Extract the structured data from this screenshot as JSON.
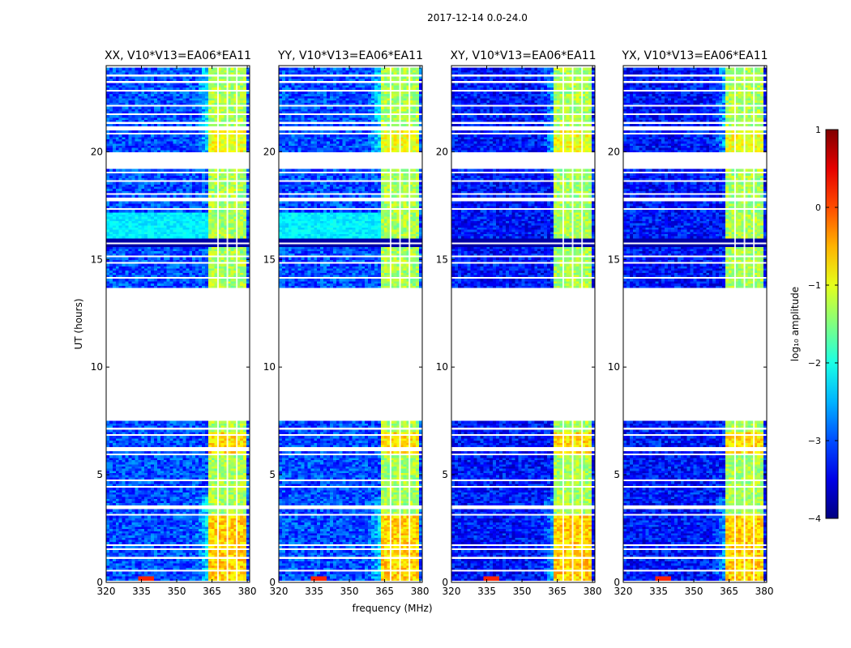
{
  "figure": {
    "suptitle": "2017-12-14 0.0-24.0",
    "shared_xlabel": "frequency (MHz)",
    "shared_ylabel": "UT (hours)"
  },
  "colorbar": {
    "label": "log₁₀ amplitude",
    "range": [
      -4,
      1
    ],
    "ticks": [
      1,
      0,
      -1,
      -2,
      -3,
      -4
    ],
    "tick_labels": [
      "1",
      "0",
      "−1",
      "−2",
      "−3",
      "−4"
    ],
    "colormap": "jet"
  },
  "chart_data": [
    {
      "type": "heatmap",
      "title": "XX, V10*V13=EA06*EA11",
      "xlabel": "frequency (MHz)",
      "ylabel": "UT (hours)",
      "xlim": [
        320,
        381
      ],
      "ylim": [
        0,
        24
      ],
      "xticks": [
        320,
        335,
        350,
        365,
        380
      ],
      "yticks": [
        0,
        5,
        10,
        15,
        20
      ],
      "data_gap_hours": [
        7.5,
        13.7
      ],
      "rfi_band_mhz": [
        363,
        379
      ],
      "cross_hand": false
    },
    {
      "type": "heatmap",
      "title": "YY, V10*V13=EA06*EA11",
      "xlabel": "frequency (MHz)",
      "ylabel": "",
      "xlim": [
        320,
        381
      ],
      "ylim": [
        0,
        24
      ],
      "xticks": [
        320,
        335,
        350,
        365,
        380
      ],
      "yticks": [
        0,
        5,
        10,
        15,
        20
      ],
      "data_gap_hours": [
        7.5,
        13.7
      ],
      "rfi_band_mhz": [
        363,
        379
      ],
      "cross_hand": false
    },
    {
      "type": "heatmap",
      "title": "XY, V10*V13=EA06*EA11",
      "xlabel": "frequency (MHz)",
      "ylabel": "",
      "xlim": [
        320,
        381
      ],
      "ylim": [
        0,
        24
      ],
      "xticks": [
        320,
        335,
        350,
        365,
        380
      ],
      "yticks": [
        0,
        5,
        10,
        15,
        20
      ],
      "data_gap_hours": [
        7.5,
        13.7
      ],
      "rfi_band_mhz": [
        363,
        379
      ],
      "cross_hand": true
    },
    {
      "type": "heatmap",
      "title": "YX, V10*V13=EA06*EA11",
      "xlabel": "frequency (MHz)",
      "ylabel": "",
      "xlim": [
        320,
        381
      ],
      "ylim": [
        0,
        24
      ],
      "xticks": [
        320,
        335,
        350,
        365,
        380
      ],
      "yticks": [
        0,
        5,
        10,
        15,
        20
      ],
      "data_gap_hours": [
        7.5,
        13.7
      ],
      "rfi_band_mhz": [
        363,
        379
      ],
      "cross_hand": true
    }
  ],
  "flagged_time_ranges_hours": [
    [
      0.0,
      0.1
    ],
    [
      0.5,
      0.6
    ],
    [
      1.1,
      1.25
    ],
    [
      1.55,
      1.65
    ],
    [
      1.75,
      1.85
    ],
    [
      3.1,
      3.2
    ],
    [
      3.4,
      3.65
    ],
    [
      4.45,
      4.55
    ],
    [
      4.7,
      4.8
    ],
    [
      5.95,
      6.05
    ],
    [
      6.15,
      6.3
    ],
    [
      6.85,
      6.95
    ],
    [
      7.15,
      7.25
    ],
    [
      7.5,
      13.7
    ],
    [
      14.1,
      14.2
    ],
    [
      14.8,
      14.9
    ],
    [
      15.15,
      15.25
    ],
    [
      15.75,
      15.85
    ],
    [
      17.3,
      17.45
    ],
    [
      17.7,
      17.9
    ],
    [
      18.0,
      18.1
    ],
    [
      18.6,
      18.75
    ],
    [
      19.05,
      19.15
    ],
    [
      19.25,
      20.0
    ],
    [
      20.85,
      20.95
    ],
    [
      21.05,
      21.2
    ],
    [
      21.35,
      21.4
    ],
    [
      21.7,
      21.8
    ],
    [
      22.15,
      22.25
    ],
    [
      22.85,
      22.9
    ],
    [
      23.2,
      23.3
    ],
    [
      23.5,
      23.6
    ],
    [
      23.9,
      24.0
    ]
  ],
  "channel_gap_columns_mhz": [
    367.2,
    371.2,
    375.2
  ]
}
